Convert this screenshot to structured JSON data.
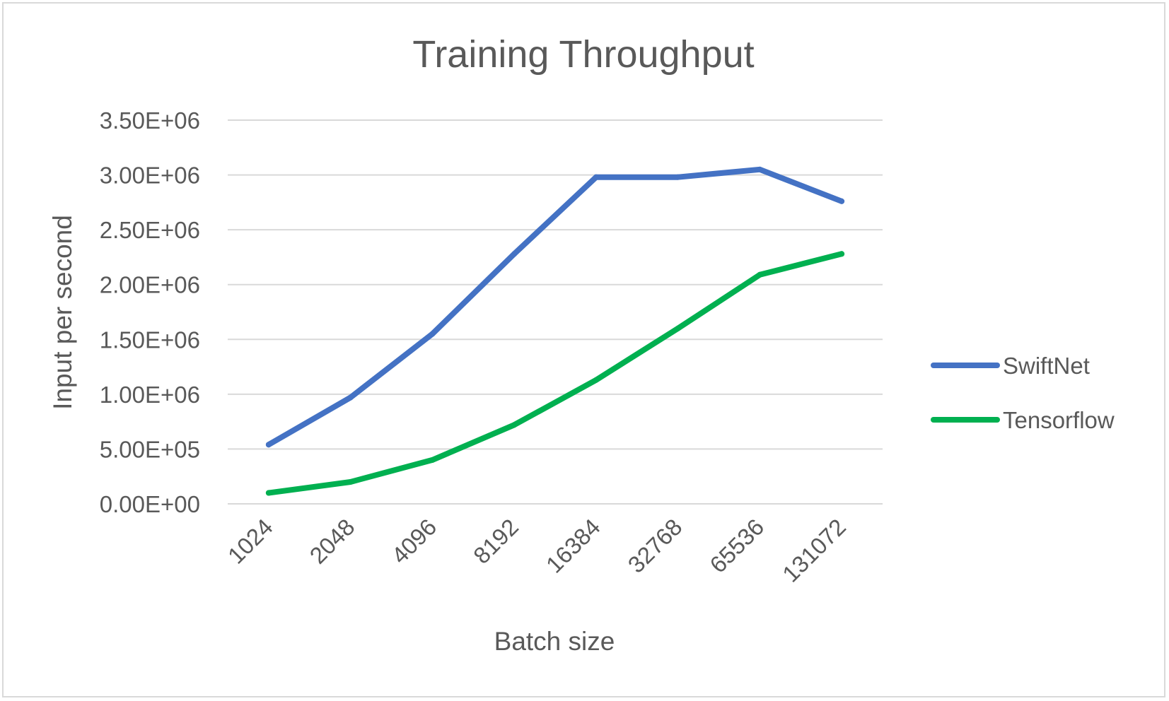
{
  "chart_data": {
    "type": "line",
    "title": "Training Throughput",
    "xlabel": "Batch size",
    "ylabel": "Input per second",
    "categories": [
      "1024",
      "2048",
      "4096",
      "8192",
      "16384",
      "32768",
      "65536",
      "131072"
    ],
    "yticks": [
      "0.00E+00",
      "5.00E+05",
      "1.00E+06",
      "1.50E+06",
      "2.00E+06",
      "2.50E+06",
      "3.00E+06",
      "3.50E+06"
    ],
    "ylim": [
      0,
      3500000
    ],
    "ystep": 500000,
    "grid": true,
    "legend_position": "right",
    "series": [
      {
        "name": "SwiftNet",
        "color": "#4472c4",
        "values": [
          540000,
          970000,
          1550000,
          2280000,
          2980000,
          2980000,
          3050000,
          2760000
        ]
      },
      {
        "name": "Tensorflow",
        "color": "#00b050",
        "values": [
          100000,
          200000,
          400000,
          720000,
          1130000,
          1600000,
          2090000,
          2280000
        ]
      }
    ]
  }
}
